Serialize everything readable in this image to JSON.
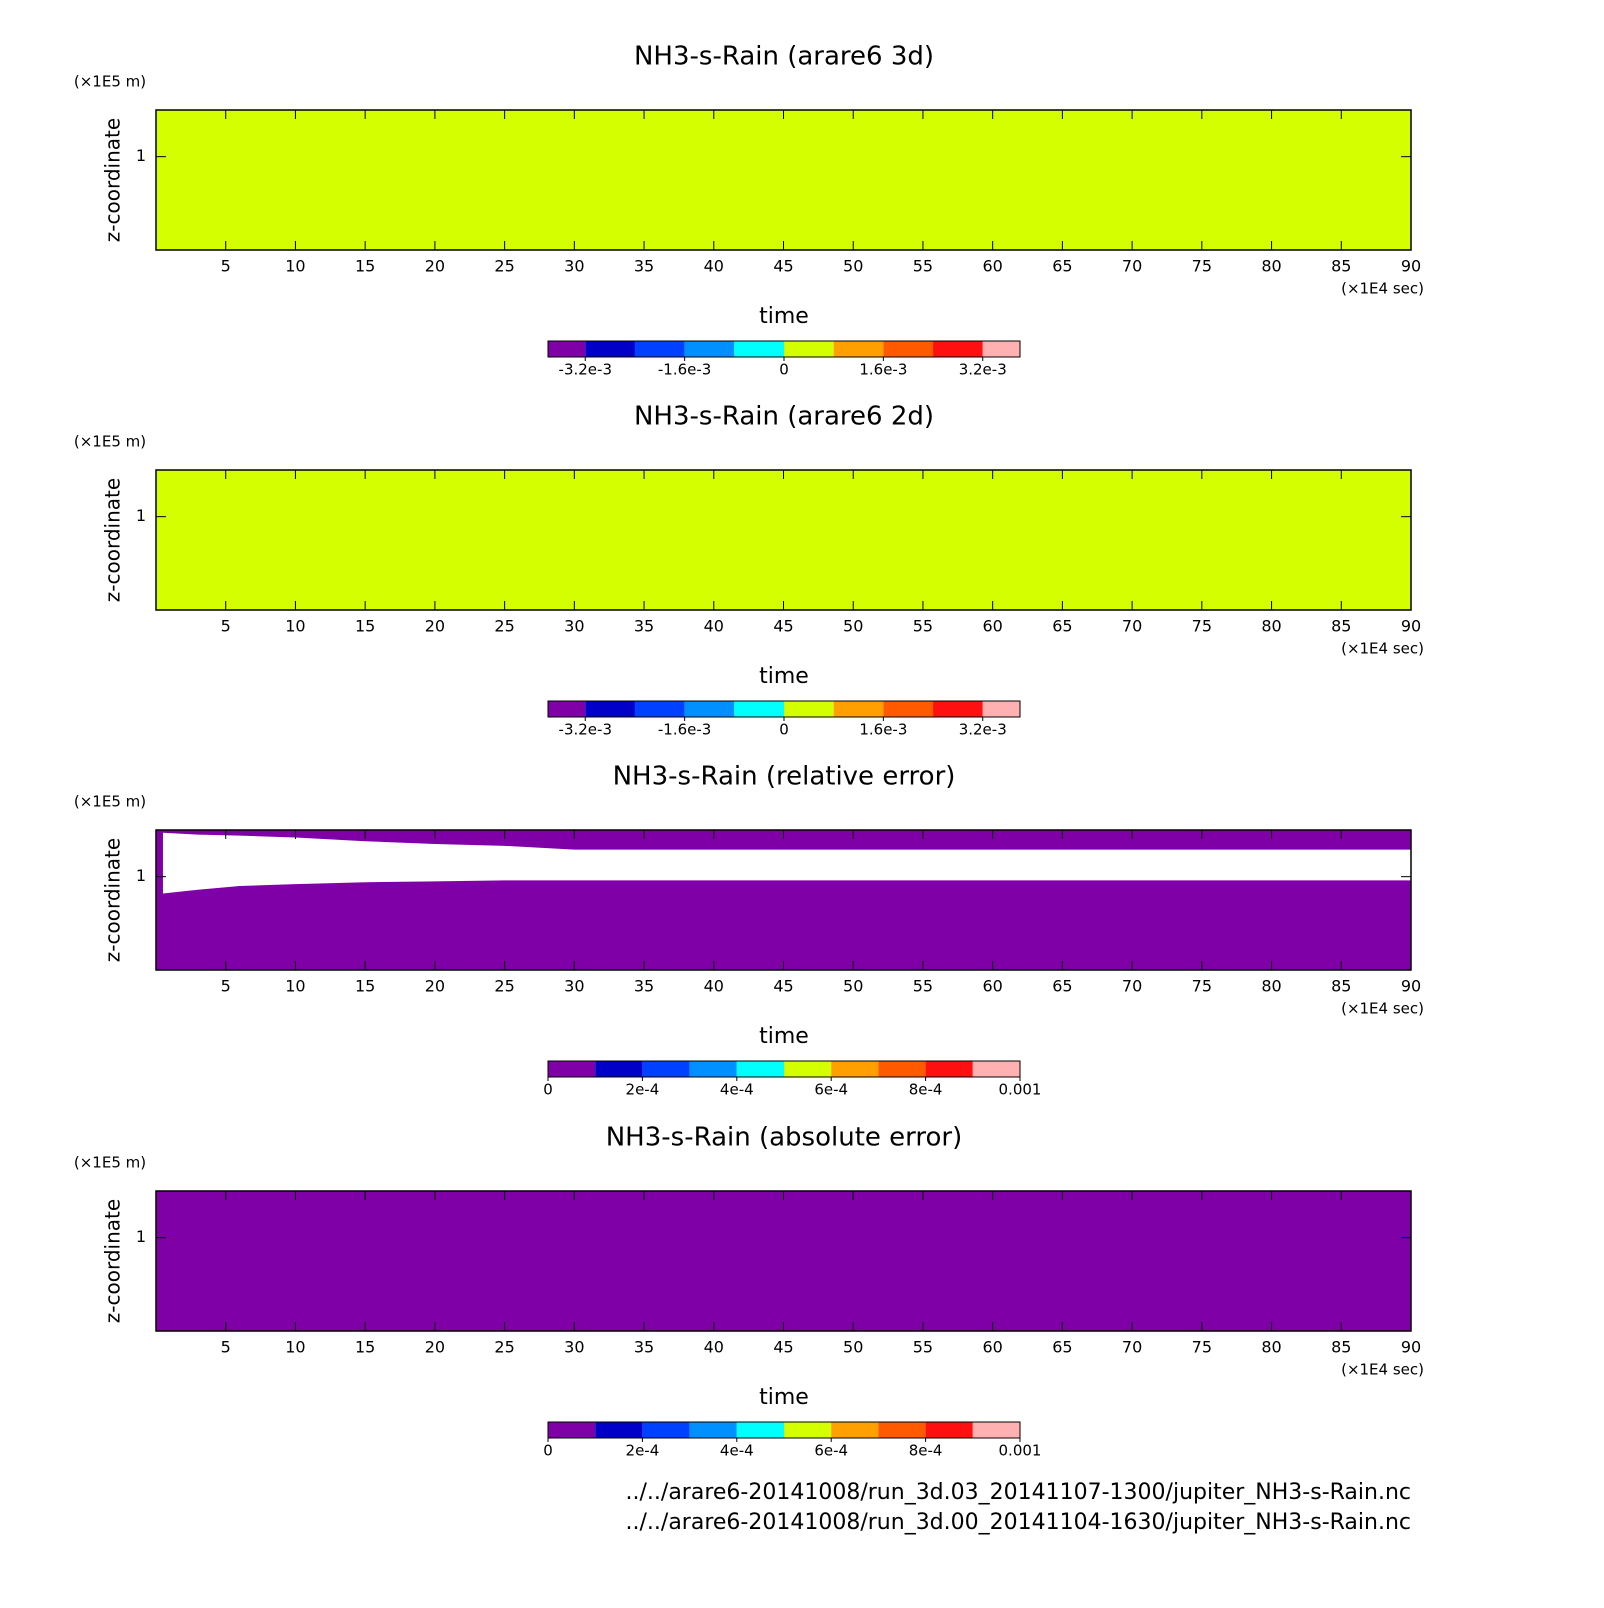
{
  "chart_data": [
    {
      "type": "heatmap",
      "title": "NH3-s-Rain (arare6 3d)",
      "x_label": "time",
      "y_label": "z-coordinate",
      "x_unit": "(×1E4 sec)",
      "y_unit": "(×1E5 m)",
      "xlim": [
        0,
        90
      ],
      "xticks": [
        5,
        10,
        15,
        20,
        25,
        30,
        35,
        40,
        45,
        50,
        55,
        60,
        65,
        70,
        75,
        80,
        85,
        90
      ],
      "ylim": [
        0,
        1.5
      ],
      "yticks": [
        1
      ],
      "background_value": 0,
      "colorbar": {
        "lim": [
          -0.0038,
          0.0038
        ],
        "bounds": [
          -0.0032,
          -0.0024,
          -0.0016,
          -0.0008,
          0,
          0.0008,
          0.0016,
          0.0024,
          0.0032
        ],
        "colors": [
          "#8000a8",
          "#0000c8",
          "#0040ff",
          "#0090ff",
          "#00ffff",
          "#d4ff00",
          "#ffa000",
          "#ff5a00",
          "#ff1010",
          "#ffb0b0"
        ],
        "ticks": [
          {
            "value": -0.0032,
            "label": "-3.2e-3"
          },
          {
            "value": -0.0016,
            "label": "-1.6e-3"
          },
          0,
          {
            "value": 0.0016,
            "label": "1.6e-3"
          },
          {
            "value": 0.0032,
            "label": "3.2e-3"
          }
        ]
      }
    },
    {
      "type": "heatmap",
      "title": "NH3-s-Rain (arare6 2d)",
      "x_label": "time",
      "y_label": "z-coordinate",
      "x_unit": "(×1E4 sec)",
      "y_unit": "(×1E5 m)",
      "xlim": [
        0,
        90
      ],
      "xticks": [
        5,
        10,
        15,
        20,
        25,
        30,
        35,
        40,
        45,
        50,
        55,
        60,
        65,
        70,
        75,
        80,
        85,
        90
      ],
      "ylim": [
        0,
        1.5
      ],
      "yticks": [
        1
      ],
      "background_value": 0,
      "colorbar": {
        "lim": [
          -0.0038,
          0.0038
        ],
        "bounds": [
          -0.0032,
          -0.0024,
          -0.0016,
          -0.0008,
          0,
          0.0008,
          0.0016,
          0.0024,
          0.0032
        ],
        "colors": [
          "#8000a8",
          "#0000c8",
          "#0040ff",
          "#0090ff",
          "#00ffff",
          "#d4ff00",
          "#ffa000",
          "#ff5a00",
          "#ff1010",
          "#ffb0b0"
        ],
        "ticks": [
          {
            "value": -0.0032,
            "label": "-3.2e-3"
          },
          {
            "value": -0.0016,
            "label": "-1.6e-3"
          },
          0,
          {
            "value": 0.0016,
            "label": "1.6e-3"
          },
          {
            "value": 0.0032,
            "label": "3.2e-3"
          }
        ]
      }
    },
    {
      "type": "heatmap",
      "title": "NH3-s-Rain (relative error)",
      "x_label": "time",
      "y_label": "z-coordinate",
      "x_unit": "(×1E4 sec)",
      "y_unit": "(×1E5 m)",
      "xlim": [
        0,
        90
      ],
      "xticks": [
        5,
        10,
        15,
        20,
        25,
        30,
        35,
        40,
        45,
        50,
        55,
        60,
        65,
        70,
        75,
        80,
        85,
        90
      ],
      "ylim": [
        0,
        1.5
      ],
      "yticks": [
        1
      ],
      "background_value": 0,
      "nan_region": {
        "x": [
          0.5,
          3,
          6,
          10,
          15,
          20,
          25,
          30,
          40,
          60,
          90
        ],
        "y_top": [
          1.47,
          1.45,
          1.44,
          1.42,
          1.38,
          1.35,
          1.33,
          1.29,
          1.29,
          1.29,
          1.29
        ],
        "y_bottom": [
          0.82,
          0.86,
          0.9,
          0.92,
          0.94,
          0.95,
          0.96,
          0.96,
          0.96,
          0.96,
          0.96
        ]
      },
      "colorbar": {
        "lim": [
          0,
          0.001
        ],
        "bounds": [
          0.0001,
          0.0002,
          0.0003,
          0.0004,
          0.0005,
          0.0006,
          0.0007,
          0.0008,
          0.0009
        ],
        "colors": [
          "#8000a8",
          "#0000c8",
          "#0040ff",
          "#0090ff",
          "#00ffff",
          "#d4ff00",
          "#ffa000",
          "#ff5a00",
          "#ff1010",
          "#ffb0b0"
        ],
        "ticks": [
          0,
          {
            "value": 0.0002,
            "label": "2e-4"
          },
          {
            "value": 0.0004,
            "label": "4e-4"
          },
          {
            "value": 0.0006,
            "label": "6e-4"
          },
          {
            "value": 0.0008,
            "label": "8e-4"
          },
          0.001
        ]
      }
    },
    {
      "type": "heatmap",
      "title": "NH3-s-Rain (absolute error)",
      "x_label": "time",
      "y_label": "z-coordinate",
      "x_unit": "(×1E4 sec)",
      "y_unit": "(×1E5 m)",
      "xlim": [
        0,
        90
      ],
      "xticks": [
        5,
        10,
        15,
        20,
        25,
        30,
        35,
        40,
        45,
        50,
        55,
        60,
        65,
        70,
        75,
        80,
        85,
        90
      ],
      "ylim": [
        0,
        1.5
      ],
      "yticks": [
        1
      ],
      "background_value": 0,
      "colorbar": {
        "lim": [
          0,
          0.001
        ],
        "bounds": [
          0.0001,
          0.0002,
          0.0003,
          0.0004,
          0.0005,
          0.0006,
          0.0007,
          0.0008,
          0.0009
        ],
        "colors": [
          "#8000a8",
          "#0000c8",
          "#0040ff",
          "#0090ff",
          "#00ffff",
          "#d4ff00",
          "#ffa000",
          "#ff5a00",
          "#ff1010",
          "#ffb0b0"
        ],
        "ticks": [
          0,
          {
            "value": 0.0002,
            "label": "2e-4"
          },
          {
            "value": 0.0004,
            "label": "4e-4"
          },
          {
            "value": 0.0006,
            "label": "6e-4"
          },
          {
            "value": 0.0008,
            "label": "8e-4"
          },
          0.001
        ]
      }
    }
  ],
  "footer": [
    "../../arare6-20141008/run_3d.03_20141107-1300/jupiter_NH3-s-Rain.nc",
    "../../arare6-20141008/run_3d.00_20141104-1630/jupiter_NH3-s-Rain.nc"
  ]
}
